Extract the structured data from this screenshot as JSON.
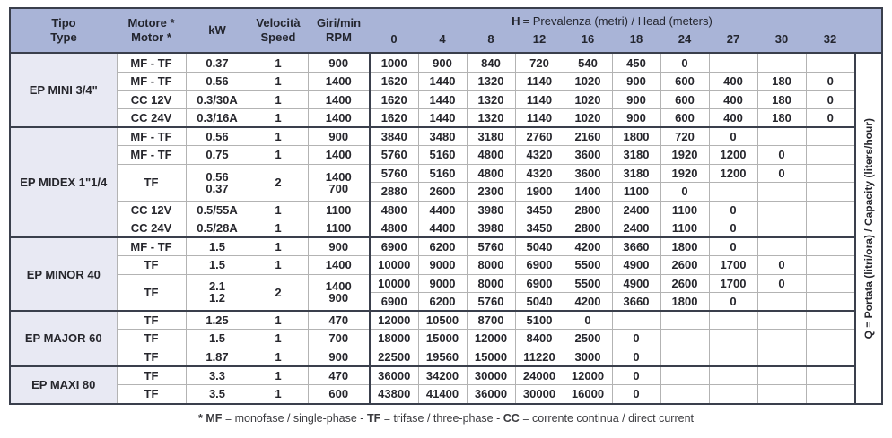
{
  "table": {
    "col_headers": {
      "tipo": [
        "Tipo",
        "Type"
      ],
      "motore": [
        "Motore *",
        "Motor *"
      ],
      "kw": [
        "kW"
      ],
      "velocita": [
        "Velocità",
        "Speed"
      ],
      "giri": [
        "Giri/min",
        "RPM"
      ]
    },
    "head_group": {
      "title_bold": "H",
      "title_rest": "= Prevalenza (metri) / Head (meters)",
      "values": [
        "0",
        "4",
        "8",
        "12",
        "16",
        "18",
        "24",
        "27",
        "30",
        "32"
      ]
    },
    "side_label": "Q = Portata (litri/ora) / Capacity (liters/hour)",
    "sections": [
      {
        "name": "EP MINI 3/4\"",
        "rows": [
          {
            "motor": "MF - TF",
            "kw": "0.37",
            "speed": "1",
            "rpm": "900",
            "q": [
              "1000",
              "900",
              "840",
              "720",
              "540",
              "450",
              "0",
              "",
              "",
              ""
            ]
          },
          {
            "motor": "MF - TF",
            "kw": "0.56",
            "speed": "1",
            "rpm": "1400",
            "q": [
              "1620",
              "1440",
              "1320",
              "1140",
              "1020",
              "900",
              "600",
              "400",
              "180",
              "0"
            ]
          },
          {
            "motor": "CC 12V",
            "kw": "0.3/30A",
            "speed": "1",
            "rpm": "1400",
            "q": [
              "1620",
              "1440",
              "1320",
              "1140",
              "1020",
              "900",
              "600",
              "400",
              "180",
              "0"
            ]
          },
          {
            "motor": "CC 24V",
            "kw": "0.3/16A",
            "speed": "1",
            "rpm": "1400",
            "q": [
              "1620",
              "1440",
              "1320",
              "1140",
              "1020",
              "900",
              "600",
              "400",
              "180",
              "0"
            ]
          }
        ]
      },
      {
        "name": "EP MIDEX 1\"1/4",
        "rows": [
          {
            "motor": "MF - TF",
            "kw": "0.56",
            "speed": "1",
            "rpm": "900",
            "q": [
              "3840",
              "3480",
              "3180",
              "2760",
              "2160",
              "1800",
              "720",
              "0",
              "",
              ""
            ]
          },
          {
            "motor": "MF - TF",
            "kw": "0.75",
            "speed": "1",
            "rpm": "1400",
            "q": [
              "5760",
              "5160",
              "4800",
              "4320",
              "3600",
              "3180",
              "1920",
              "1200",
              "0",
              ""
            ]
          },
          {
            "dual": true,
            "motor": "TF",
            "kw": [
              "0.56",
              "0.37"
            ],
            "speed": "2",
            "rpm": [
              "1400",
              "700"
            ],
            "q": [
              "5760",
              "5160",
              "4800",
              "4320",
              "3600",
              "3180",
              "1920",
              "1200",
              "0",
              ""
            ],
            "q2": [
              "2880",
              "2600",
              "2300",
              "1900",
              "1400",
              "1100",
              "0",
              "",
              "",
              ""
            ]
          },
          {
            "motor": "CC 12V",
            "kw": "0.5/55A",
            "speed": "1",
            "rpm": "1100",
            "q": [
              "4800",
              "4400",
              "3980",
              "3450",
              "2800",
              "2400",
              "1100",
              "0",
              "",
              ""
            ]
          },
          {
            "motor": "CC 24V",
            "kw": "0.5/28A",
            "speed": "1",
            "rpm": "1100",
            "q": [
              "4800",
              "4400",
              "3980",
              "3450",
              "2800",
              "2400",
              "1100",
              "0",
              "",
              ""
            ]
          }
        ]
      },
      {
        "name": "EP MINOR 40",
        "rows": [
          {
            "motor": "MF - TF",
            "kw": "1.5",
            "speed": "1",
            "rpm": "900",
            "q": [
              "6900",
              "6200",
              "5760",
              "5040",
              "4200",
              "3660",
              "1800",
              "0",
              "",
              ""
            ]
          },
          {
            "motor": "TF",
            "kw": "1.5",
            "speed": "1",
            "rpm": "1400",
            "q": [
              "10000",
              "9000",
              "8000",
              "6900",
              "5500",
              "4900",
              "2600",
              "1700",
              "0",
              ""
            ]
          },
          {
            "dual": true,
            "motor": "TF",
            "kw": [
              "2.1",
              "1.2"
            ],
            "speed": "2",
            "rpm": [
              "1400",
              "900"
            ],
            "q": [
              "10000",
              "9000",
              "8000",
              "6900",
              "5500",
              "4900",
              "2600",
              "1700",
              "0",
              ""
            ],
            "q2": [
              "6900",
              "6200",
              "5760",
              "5040",
              "4200",
              "3660",
              "1800",
              "0",
              "",
              ""
            ]
          }
        ]
      },
      {
        "name": "EP MAJOR 60",
        "rows": [
          {
            "motor": "TF",
            "kw": "1.25",
            "speed": "1",
            "rpm": "470",
            "q": [
              "12000",
              "10500",
              "8700",
              "5100",
              "0",
              "",
              "",
              "",
              "",
              ""
            ]
          },
          {
            "motor": "TF",
            "kw": "1.5",
            "speed": "1",
            "rpm": "700",
            "q": [
              "18000",
              "15000",
              "12000",
              "8400",
              "2500",
              "0",
              "",
              "",
              "",
              ""
            ]
          },
          {
            "motor": "TF",
            "kw": "1.87",
            "speed": "1",
            "rpm": "900",
            "q": [
              "22500",
              "19560",
              "15000",
              "11220",
              "3000",
              "0",
              "",
              "",
              "",
              ""
            ]
          }
        ]
      },
      {
        "name": "EP MAXI 80",
        "rows": [
          {
            "motor": "TF",
            "kw": "3.3",
            "speed": "1",
            "rpm": "470",
            "q": [
              "36000",
              "34200",
              "30000",
              "24000",
              "12000",
              "0",
              "",
              "",
              "",
              ""
            ]
          },
          {
            "motor": "TF",
            "kw": "3.5",
            "speed": "1",
            "rpm": "600",
            "q": [
              "43800",
              "41400",
              "36000",
              "30000",
              "16000",
              "0",
              "",
              "",
              "",
              ""
            ]
          }
        ]
      }
    ]
  },
  "footnote": {
    "segments": [
      {
        "text": "* MF",
        "bold": true
      },
      {
        "text": " = monofase / single-phase - ",
        "bold": false
      },
      {
        "text": "TF",
        "bold": true
      },
      {
        "text": " = trifase / three-phase - ",
        "bold": false
      },
      {
        "text": "CC",
        "bold": true
      },
      {
        "text": " = corrente continua / direct current",
        "bold": false
      }
    ]
  },
  "colors": {
    "header_bg": "#a9b4d7",
    "section_bg": "#e8e9f3",
    "border_dark": "#3a3f4c",
    "border_light": "#b3b3b3"
  }
}
